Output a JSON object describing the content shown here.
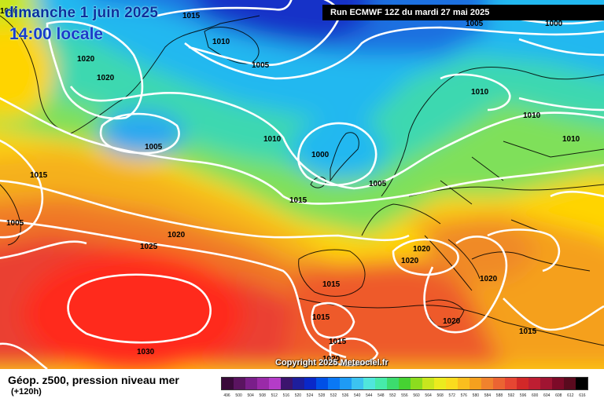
{
  "header": {
    "date": "dimanche 1 juin 2025",
    "time": "14:00 locale",
    "run": "Run ECMWF 12Z du mardi 27 mai 2025"
  },
  "copyright": "Copyright 2025 Meteociel.fr",
  "footer": {
    "title": "Géop. z500, pression niveau mer",
    "lead": "(+120h)"
  },
  "legend": {
    "ticks": [
      "496",
      "500",
      "504",
      "508",
      "512",
      "516",
      "520",
      "524",
      "528",
      "532",
      "536",
      "540",
      "544",
      "548",
      "552",
      "556",
      "560",
      "564",
      "568",
      "572",
      "576",
      "580",
      "584",
      "588",
      "592",
      "596",
      "600",
      "604",
      "608",
      "612",
      "616"
    ],
    "colors": [
      "#3a0a3a",
      "#5a1460",
      "#7a1e8a",
      "#9a2aa8",
      "#b43cc8",
      "#3c146e",
      "#1e1e9c",
      "#0a28c8",
      "#0050e6",
      "#0a78f5",
      "#1e9bf5",
      "#3cc3f0",
      "#50e6dc",
      "#46ebaa",
      "#3cdc6e",
      "#46d232",
      "#8cdc1e",
      "#c8e61e",
      "#ebeb1e",
      "#fadc1e",
      "#fabe1e",
      "#f5a01e",
      "#f0822d",
      "#eb6432",
      "#e64632",
      "#d22828",
      "#be1e32",
      "#a01432",
      "#7d0a28",
      "#5a0a1e",
      "#000000"
    ]
  },
  "isobars": [
    {
      "text": "1015",
      "pos": "top-left"
    },
    {
      "text": "1010",
      "pos": "far-top-left"
    },
    {
      "text": "1010",
      "pos": "iceland-north"
    },
    {
      "text": "1005",
      "pos": "north-atlantic"
    },
    {
      "text": "1020",
      "pos": "greenland-1"
    },
    {
      "text": "1020",
      "pos": "greenland-2"
    },
    {
      "text": "1005",
      "pos": "low-west"
    },
    {
      "text": "1010",
      "pos": "mid-atlantic"
    },
    {
      "text": "1000",
      "pos": "low-north-sea"
    },
    {
      "text": "1005",
      "pos": "north-sea"
    },
    {
      "text": "1015",
      "pos": "west-1"
    },
    {
      "text": "1005",
      "pos": "west-2"
    },
    {
      "text": "1015",
      "pos": "biscay"
    },
    {
      "text": "1020",
      "pos": "atlantic-mid"
    },
    {
      "text": "1025",
      "pos": "atlantic-south"
    },
    {
      "text": "1030",
      "pos": "azores-high"
    },
    {
      "text": "1005",
      "pos": "top-right-1"
    },
    {
      "text": "1000",
      "pos": "top-right-2"
    },
    {
      "text": "1010",
      "pos": "scandinavia"
    },
    {
      "text": "1010",
      "pos": "russia-1"
    },
    {
      "text": "1010",
      "pos": "russia-2"
    },
    {
      "text": "1020",
      "pos": "alps-1"
    },
    {
      "text": "1020",
      "pos": "alps-2"
    },
    {
      "text": "1020",
      "pos": "balkans"
    },
    {
      "text": "1015",
      "pos": "iberia-1"
    },
    {
      "text": "1015",
      "pos": "iberia-2"
    },
    {
      "text": "1015",
      "pos": "north-africa"
    },
    {
      "text": "1020",
      "pos": "sahara"
    },
    {
      "text": "1020",
      "pos": "libya"
    },
    {
      "text": "1015",
      "pos": "middle-east"
    }
  ]
}
